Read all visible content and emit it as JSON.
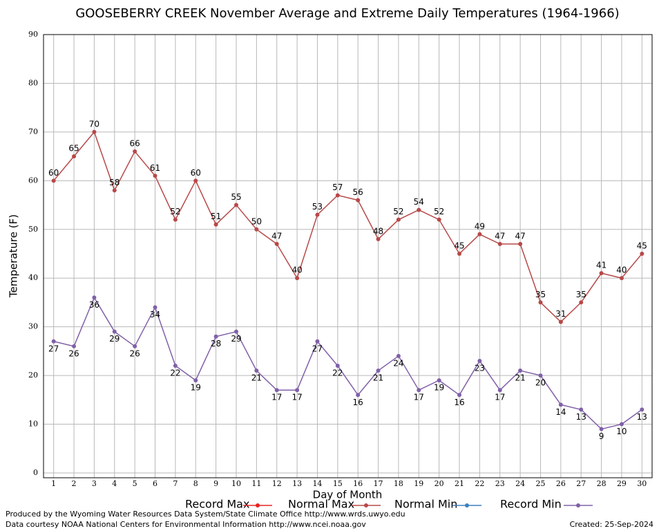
{
  "chart_data": {
    "type": "line",
    "title": "GOOSEBERRY CREEK November Average and Extreme Daily Temperatures (1964-1966)",
    "x_label": "Day of Month",
    "y_label": "Temperature (F)",
    "x": [
      1,
      2,
      3,
      4,
      5,
      6,
      7,
      8,
      9,
      10,
      11,
      12,
      13,
      14,
      15,
      16,
      17,
      18,
      19,
      20,
      21,
      22,
      23,
      24,
      25,
      26,
      27,
      28,
      29,
      30
    ],
    "xlim": [
      0.5,
      30.5
    ],
    "xticks": [
      1,
      2,
      3,
      4,
      5,
      6,
      7,
      8,
      9,
      10,
      11,
      12,
      13,
      14,
      15,
      16,
      17,
      18,
      19,
      20,
      21,
      22,
      23,
      24,
      25,
      26,
      27,
      28,
      29,
      30
    ],
    "ylim": [
      -1,
      90
    ],
    "yticks": [
      0,
      10,
      20,
      30,
      40,
      50,
      60,
      70,
      80,
      90
    ],
    "grid": true,
    "series": [
      {
        "name": "Record Max",
        "color": "#e8231e",
        "values": [
          null,
          null,
          null,
          null,
          null,
          null,
          null,
          null,
          null,
          null,
          null,
          null,
          null,
          null,
          null,
          null,
          null,
          null,
          null,
          null,
          null,
          null,
          null,
          null,
          null,
          null,
          null,
          null,
          null,
          null
        ]
      },
      {
        "name": "Normal Max",
        "color": "#b84848",
        "values": [
          60,
          65,
          70,
          58,
          66,
          61,
          52,
          60,
          51,
          55,
          50,
          47,
          40,
          53,
          57,
          56,
          48,
          52,
          54,
          52,
          45,
          49,
          47,
          47,
          35,
          31,
          35,
          41,
          40,
          45
        ]
      },
      {
        "name": "Normal Min",
        "color": "#3f7fbf",
        "values": [
          null,
          null,
          null,
          null,
          null,
          null,
          null,
          null,
          null,
          null,
          null,
          null,
          null,
          null,
          null,
          null,
          null,
          null,
          null,
          null,
          null,
          null,
          null,
          null,
          null,
          null,
          null,
          null,
          null,
          null
        ]
      },
      {
        "name": "Record Min",
        "color": "#8060a8",
        "values": [
          27,
          26,
          36,
          29,
          26,
          34,
          22,
          19,
          28,
          29,
          21,
          17,
          17,
          27,
          22,
          16,
          21,
          24,
          17,
          19,
          16,
          23,
          17,
          21,
          20,
          14,
          13,
          9,
          10,
          13
        ]
      }
    ],
    "footer_left": [
      "Produced by the Wyoming Water Resources Data System/State Climate Office http://www.wrds.uwyo.edu",
      "Data courtesy NOAA National Centers for Environmental Information http://www.ncei.noaa.gov"
    ],
    "footer_right": "Created:  25-Sep-2024"
  }
}
